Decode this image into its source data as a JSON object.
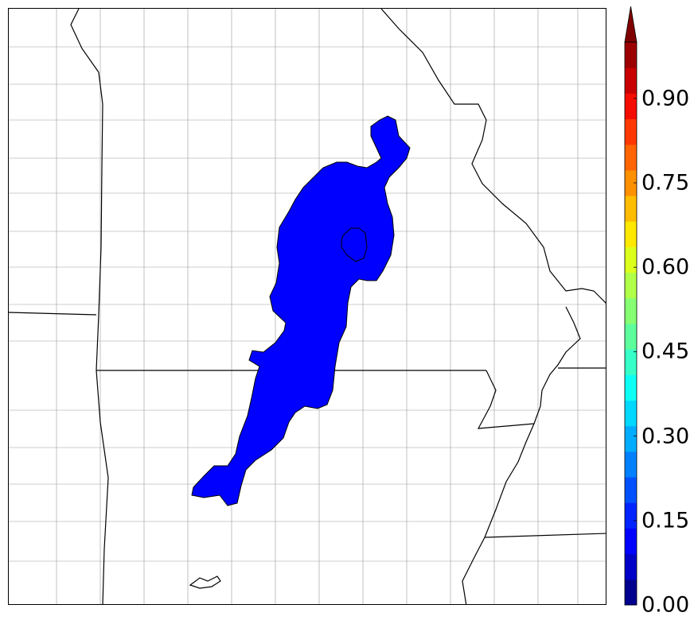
{
  "colorbar": {
    "tick_labels": [
      "0.00",
      "0.15",
      "0.30",
      "0.45",
      "0.60",
      "0.75",
      "0.90"
    ],
    "tick_values": [
      0.0,
      0.15,
      0.3,
      0.45,
      0.6,
      0.75,
      0.9
    ],
    "min": 0.0,
    "max": 1.0,
    "extend": "max",
    "colormap": "jet",
    "colors": [
      "#00008f",
      "#0000c8",
      "#0000ff",
      "#0024ff",
      "#0050ff",
      "#0080ff",
      "#00acff",
      "#00d8ff",
      "#0cfff4",
      "#36ffc8",
      "#5cff9c",
      "#86ff72",
      "#b0ff48",
      "#dcff1c",
      "#ffe800",
      "#ffbc00",
      "#ff9000",
      "#ff6400",
      "#ff3800",
      "#f50c00",
      "#c80000",
      "#9c0000"
    ],
    "extend_color": "#7f0000"
  },
  "map": {
    "region": "Missouri / Arkansas county map",
    "filled_area_color": "#0000ff",
    "filled_value_range": "0.10-0.15"
  }
}
